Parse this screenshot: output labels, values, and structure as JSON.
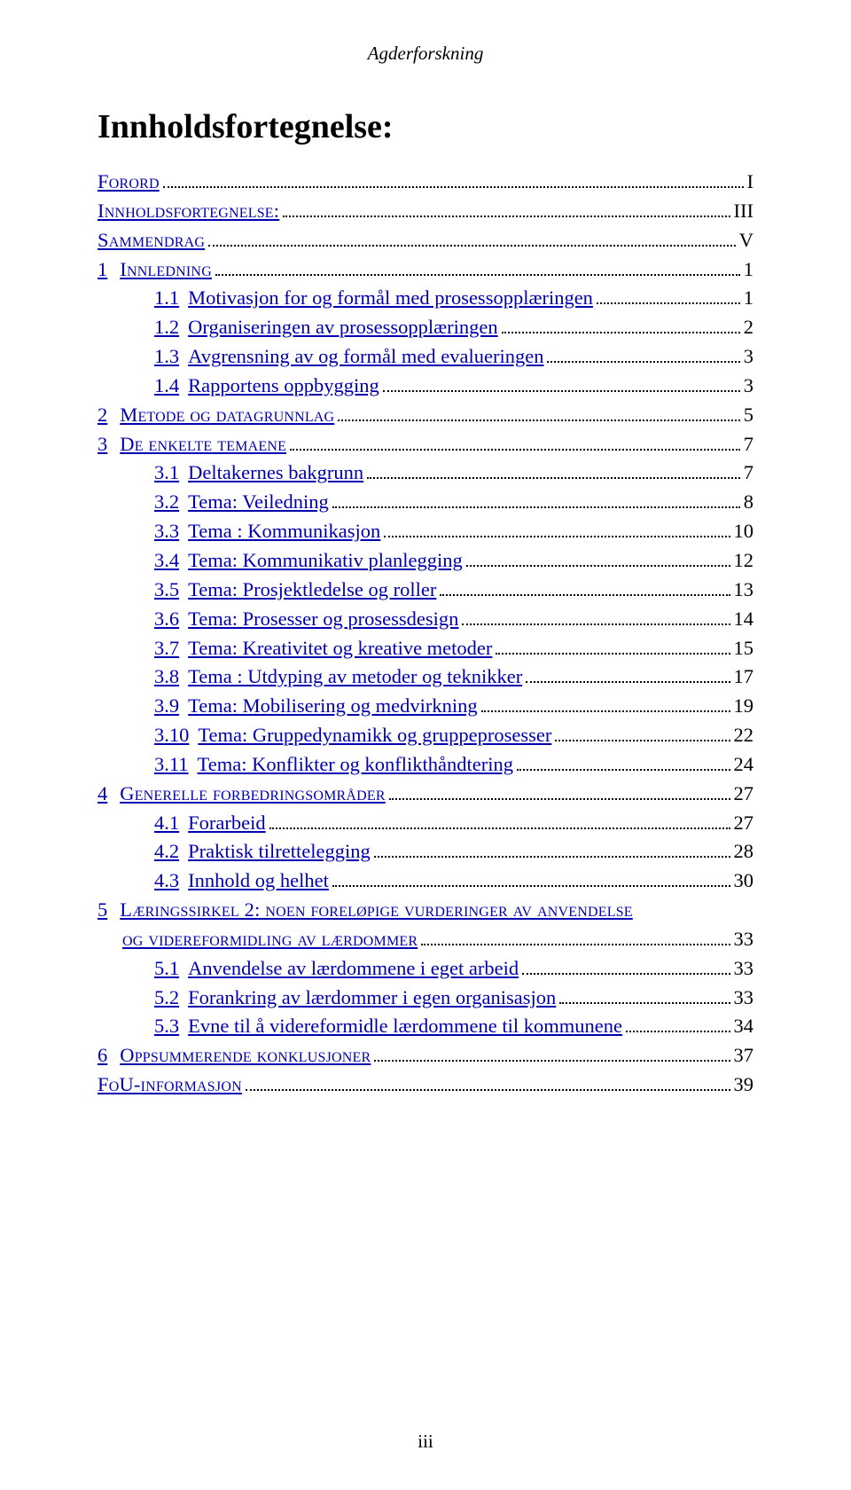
{
  "colors": {
    "link": "#0000b0",
    "text": "#000000",
    "background": "#ffffff"
  },
  "typography": {
    "body_font": "Times New Roman",
    "body_size_pt": 17,
    "title_size_pt": 29,
    "header_italic": true
  },
  "header": "Agderforskning",
  "title": "Innholdsfortegnelse:",
  "page_number": "iii",
  "toc": [
    {
      "level": 0,
      "num": "",
      "label_sc": "Forord",
      "page": "I"
    },
    {
      "level": 0,
      "num": "",
      "label_sc": "Innholdsfortegnelse:",
      "page": "III"
    },
    {
      "level": 0,
      "num": "",
      "label_sc": "Sammendrag",
      "page": "V"
    },
    {
      "level": 0,
      "num": "1",
      "label_sc": "Innledning",
      "page": "1"
    },
    {
      "level": 2,
      "num": "1.1",
      "label": "Motivasjon for og formål med prosessopplæringen",
      "page": "1"
    },
    {
      "level": 2,
      "num": "1.2",
      "label": "Organiseringen av prosessopplæringen",
      "page": "2"
    },
    {
      "level": 2,
      "num": "1.3",
      "label": "Avgrensning av og formål med evalueringen",
      "page": "3"
    },
    {
      "level": 2,
      "num": "1.4",
      "label": "Rapportens oppbygging",
      "page": "3"
    },
    {
      "level": 0,
      "num": "2",
      "label_sc": "Metode og datagrunnlag",
      "page": "5"
    },
    {
      "level": 0,
      "num": "3",
      "label_sc": "De enkelte temaene",
      "page": "7"
    },
    {
      "level": 2,
      "num": "3.1",
      "label": "Deltakernes bakgrunn",
      "page": "7"
    },
    {
      "level": 2,
      "num": "3.2",
      "label": "Tema: Veiledning",
      "page": "8"
    },
    {
      "level": 2,
      "num": "3.3",
      "label": "Tema : Kommunikasjon",
      "page": "10"
    },
    {
      "level": 2,
      "num": "3.4",
      "label": "Tema: Kommunikativ planlegging",
      "page": "12"
    },
    {
      "level": 2,
      "num": "3.5",
      "label": "Tema: Prosjektledelse og roller",
      "page": "13"
    },
    {
      "level": 2,
      "num": "3.6",
      "label": "Tema: Prosesser og prosessdesign",
      "page": "14"
    },
    {
      "level": 2,
      "num": "3.7",
      "label": "Tema: Kreativitet og kreative metoder",
      "page": "15"
    },
    {
      "level": 2,
      "num": "3.8",
      "label": "Tema : Utdyping av metoder og teknikker",
      "page": "17"
    },
    {
      "level": 2,
      "num": "3.9",
      "label": "Tema: Mobilisering og medvirkning",
      "page": "19"
    },
    {
      "level": 2,
      "num": "3.10",
      "label": "Tema: Gruppedynamikk og gruppeprosesser",
      "page": "22"
    },
    {
      "level": 2,
      "num": "3.11",
      "label": "Tema: Konflikter og konflikthåndtering",
      "page": "24"
    },
    {
      "level": 0,
      "num": "4",
      "label_sc": "Generelle forbedringsområder",
      "page": "27"
    },
    {
      "level": 2,
      "num": "4.1",
      "label": "Forarbeid",
      "page": "27"
    },
    {
      "level": 2,
      "num": "4.2",
      "label": "Praktisk tilrettelegging",
      "page": "28"
    },
    {
      "level": 2,
      "num": "4.3",
      "label": "Innhold og helhet",
      "page": "30"
    },
    {
      "level": 0,
      "num": "5",
      "two_line": true,
      "label_sc_line1": "Læringssirkel 2: noen foreløpige vurderinger av anvendelse",
      "label_sc_line2": "og videreformidling av lærdommer",
      "page": "33"
    },
    {
      "level": 2,
      "num": "5.1",
      "label": "Anvendelse av lærdommene i eget arbeid",
      "page": "33"
    },
    {
      "level": 2,
      "num": "5.2",
      "label": "Forankring av lærdommer i egen organisasjon",
      "page": "33"
    },
    {
      "level": 2,
      "num": "5.3",
      "label": "Evne til å videreformidle lærdommene til kommunene",
      "page": "34"
    },
    {
      "level": 0,
      "num": "6",
      "label_sc": "Oppsummerende konklusjoner",
      "page": "37"
    },
    {
      "level": 0,
      "num": "",
      "label_sc_mixed": "FoU-informasjon",
      "page": "39"
    }
  ]
}
